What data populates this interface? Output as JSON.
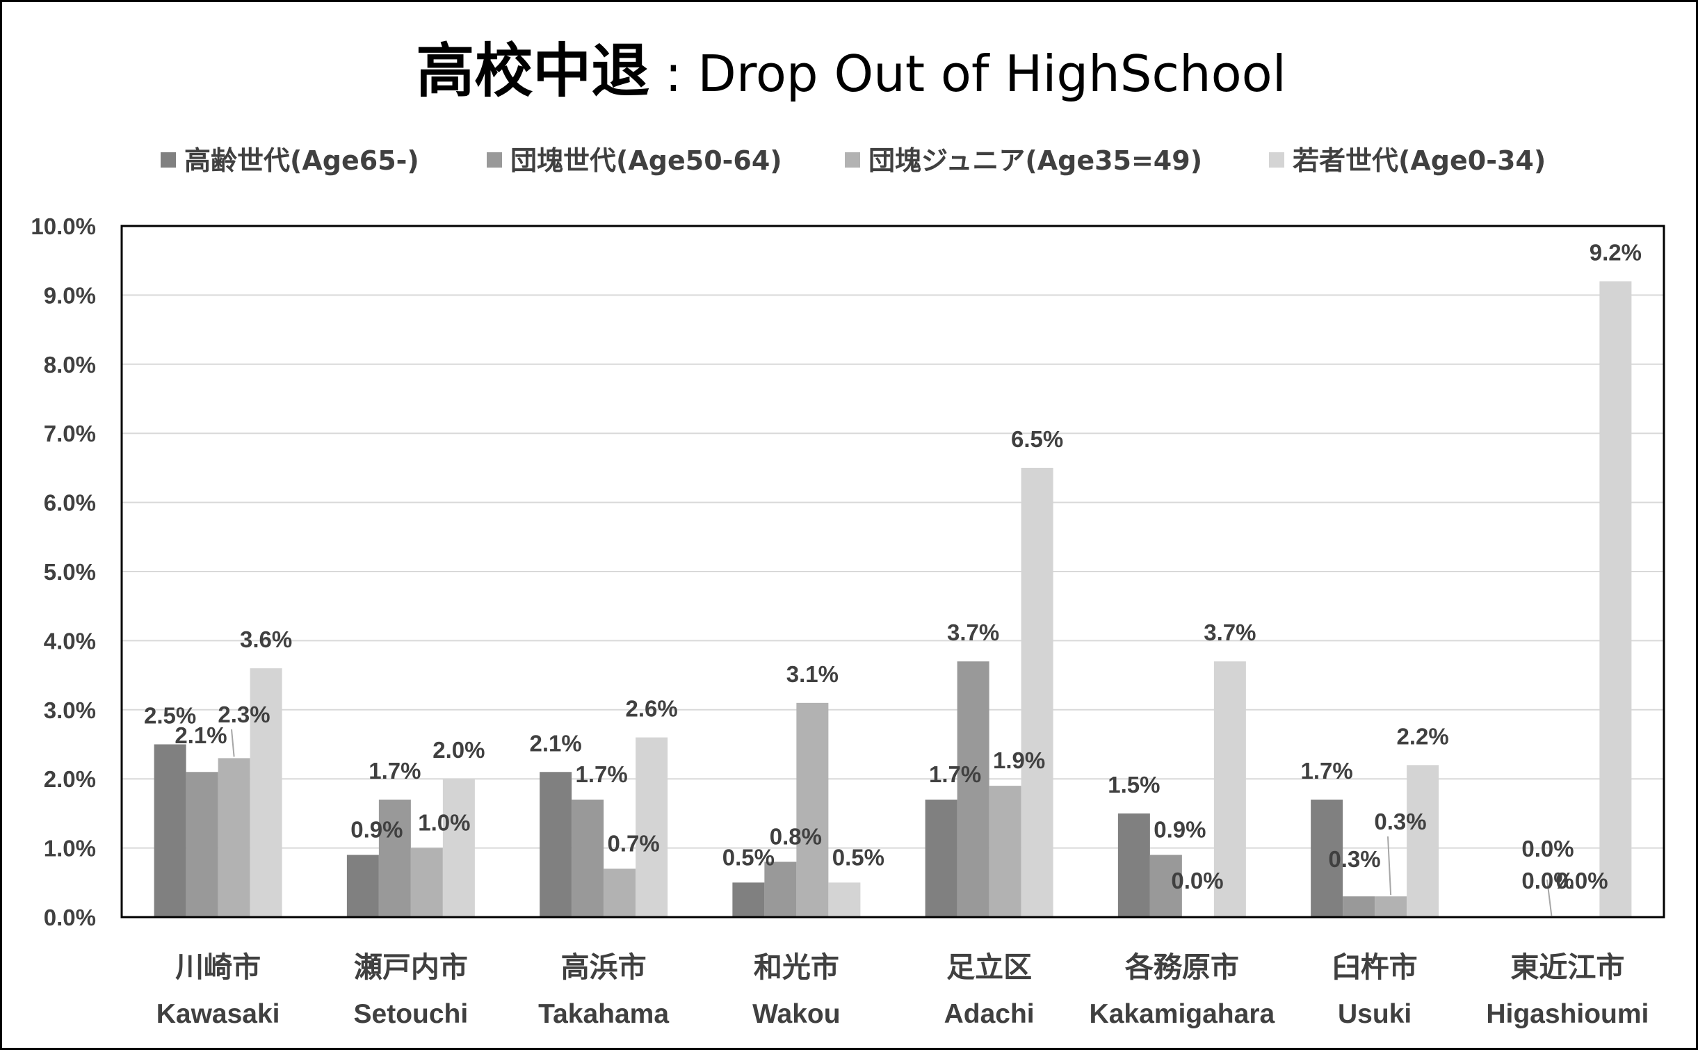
{
  "title": {
    "main": "高校中退",
    "sub": ": Drop Out of HighSchool"
  },
  "chart_data": {
    "type": "bar",
    "title": "高校中退 : Drop Out of HighSchool",
    "categories": [
      {
        "jp": "川崎市",
        "en": "Kawasaki"
      },
      {
        "jp": "瀬戸内市",
        "en": "Setouchi"
      },
      {
        "jp": "高浜市",
        "en": "Takahama"
      },
      {
        "jp": "和光市",
        "en": "Wakou"
      },
      {
        "jp": "足立区",
        "en": "Adachi"
      },
      {
        "jp": "各務原市",
        "en": "Kakamigahara"
      },
      {
        "jp": "臼杵市",
        "en": "Usuki"
      },
      {
        "jp": "東近江市",
        "en": "Higashioumi"
      }
    ],
    "series": [
      {
        "name": "高齢世代(Age65-)",
        "color": "#808080",
        "values": [
          2.5,
          0.9,
          2.1,
          0.5,
          1.7,
          1.5,
          1.7,
          0.0
        ]
      },
      {
        "name": "団塊世代(Age50-64)",
        "color": "#999999",
        "values": [
          2.1,
          1.7,
          1.7,
          0.8,
          3.7,
          0.9,
          0.3,
          0.0
        ]
      },
      {
        "name": "団塊ジュニア(Age35=49)",
        "color": "#b2b2b2",
        "values": [
          2.3,
          1.0,
          0.7,
          3.1,
          1.9,
          0.0,
          0.3,
          0.0
        ]
      },
      {
        "name": "若者世代(Age0-34)",
        "color": "#d4d4d4",
        "values": [
          3.6,
          2.0,
          2.6,
          0.5,
          6.5,
          3.7,
          2.2,
          9.2
        ]
      }
    ],
    "ylim": [
      0,
      10
    ],
    "ytick_labels": [
      "0.0%",
      "1.0%",
      "2.0%",
      "3.0%",
      "4.0%",
      "5.0%",
      "6.0%",
      "7.0%",
      "8.0%",
      "9.0%",
      "10.0%"
    ],
    "data_labels": [
      [
        "2.5%",
        "0.9%",
        "2.1%",
        "0.5%",
        "1.7%",
        "1.5%",
        "1.7%",
        "0.0%"
      ],
      [
        "2.1%",
        "1.7%",
        "1.7%",
        "0.8%",
        "3.7%",
        "0.9%",
        "0.3%",
        "0.0%"
      ],
      [
        "2.3%",
        "1.0%",
        "0.7%",
        "3.1%",
        "1.9%",
        "0.0%",
        "0.3%",
        "0.0%"
      ],
      [
        "3.6%",
        "2.0%",
        "2.6%",
        "0.5%",
        "6.5%",
        "3.7%",
        "2.2%",
        "9.2%"
      ]
    ],
    "grid": true,
    "legend_position": "top",
    "xlabel": "",
    "ylabel": ""
  }
}
